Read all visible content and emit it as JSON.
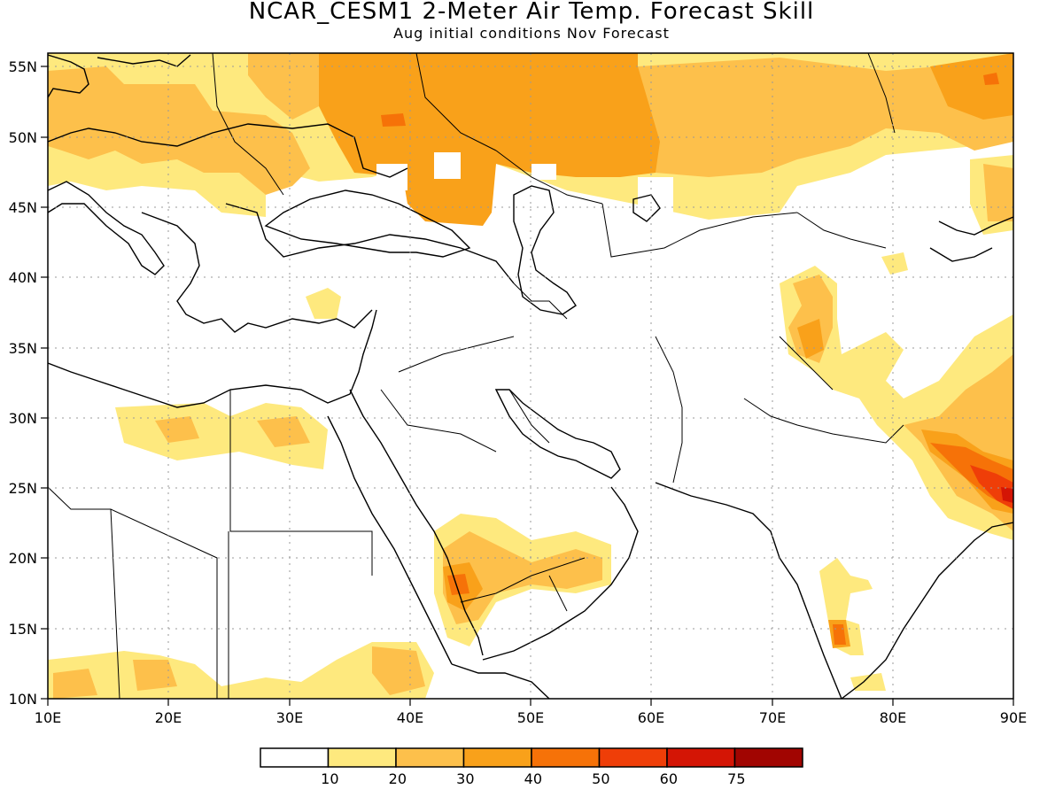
{
  "title": "NCAR_CESM1 2-Meter Air Temp. Forecast Skill",
  "subtitle": "Aug initial conditions  Nov Forecast",
  "map": {
    "lon_ticks": [
      "10E",
      "20E",
      "30E",
      "40E",
      "50E",
      "60E",
      "70E",
      "80E",
      "90E"
    ],
    "lat_ticks": [
      "10N",
      "15N",
      "20N",
      "25N",
      "30N",
      "35N",
      "40N",
      "45N",
      "50N",
      "55N"
    ],
    "lon_range": [
      10,
      90
    ],
    "lat_range": [
      10,
      56
    ],
    "grid": "dotted"
  },
  "legend": {
    "labels": [
      "10",
      "20",
      "30",
      "40",
      "50",
      "60",
      "75"
    ],
    "colors": [
      "#ffffff",
      "#fee97e",
      "#fdc04b",
      "#f9a11a",
      "#f67208",
      "#ef3e08",
      "#d41505",
      "#a10501"
    ]
  },
  "colors": {
    "c1": "#fee97e",
    "c2": "#fdc04b",
    "c3": "#f9a11a",
    "c4": "#f67208",
    "c5": "#ef3e08",
    "c6": "#d41505"
  }
}
